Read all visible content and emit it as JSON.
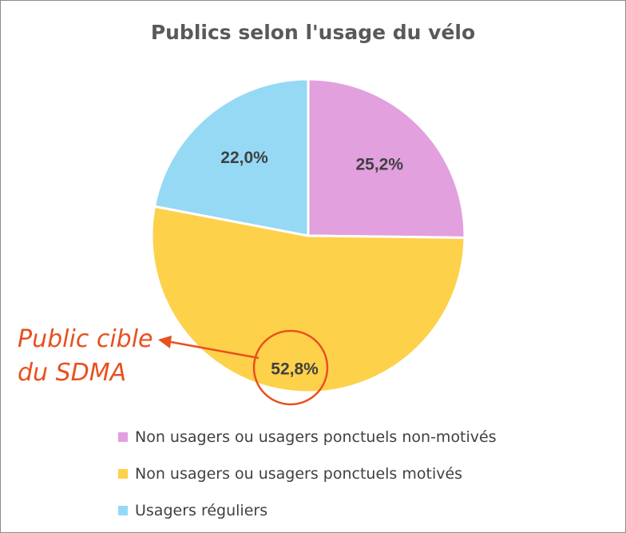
{
  "chart_data": {
    "type": "pie",
    "title": "Publics selon l'usage du vélo",
    "slices": [
      {
        "label": "Non usagers ou usagers ponctuels non-motivés",
        "value": 25.2,
        "display": "25,2%",
        "color": "#e2a0de"
      },
      {
        "label": "Non usagers ou usagers ponctuels motivés",
        "value": 52.8,
        "display": "52,8%",
        "color": "#fdd14a"
      },
      {
        "label": "Usagers réguliers",
        "value": 22.0,
        "display": "22,0%",
        "color": "#95d9f5"
      }
    ],
    "legend_position": "bottom",
    "annotation": {
      "lines": [
        "Public cible",
        "du SDMA"
      ],
      "color": "#e8501f",
      "target_slice": "Non usagers ou usagers ponctuels motivés"
    }
  }
}
